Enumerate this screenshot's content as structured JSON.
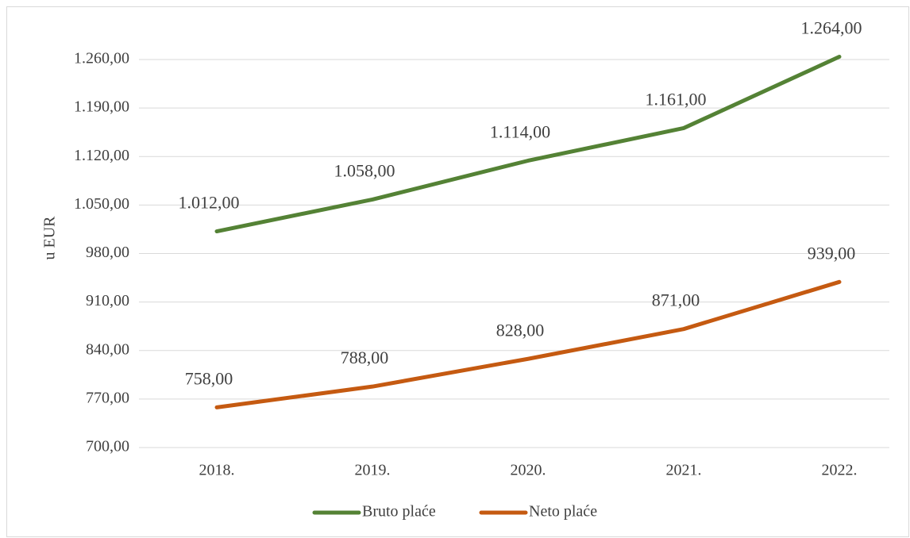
{
  "chart_data": {
    "type": "line",
    "y_label": "u EUR",
    "categories": [
      "2018.",
      "2019.",
      "2020.",
      "2021.",
      "2022."
    ],
    "series": [
      {
        "name": "Bruto plaće",
        "color": "#548235",
        "values": [
          1012,
          1058,
          1114,
          1161,
          1264
        ],
        "value_labels": [
          "1.012,00",
          "1.058,00",
          "1.114,00",
          "1.161,00",
          "1.264,00"
        ]
      },
      {
        "name": "Neto plaće",
        "color": "#c55a11",
        "values": [
          758,
          788,
          828,
          871,
          939
        ],
        "value_labels": [
          "758,00",
          "788,00",
          "828,00",
          "871,00",
          "939,00"
        ]
      }
    ],
    "ylim": [
      700,
      1260
    ],
    "yticks": [
      {
        "value": 700,
        "label": "700,00"
      },
      {
        "value": 770,
        "label": "770,00"
      },
      {
        "value": 840,
        "label": "840,00"
      },
      {
        "value": 910,
        "label": "910,00"
      },
      {
        "value": 980,
        "label": "980,00"
      },
      {
        "value": 1050,
        "label": "1.050,00"
      },
      {
        "value": 1120,
        "label": "1.120,00"
      },
      {
        "value": 1190,
        "label": "1.190,00"
      },
      {
        "value": 1260,
        "label": "1.260,00"
      }
    ],
    "grid": true,
    "legend": "bottom"
  }
}
